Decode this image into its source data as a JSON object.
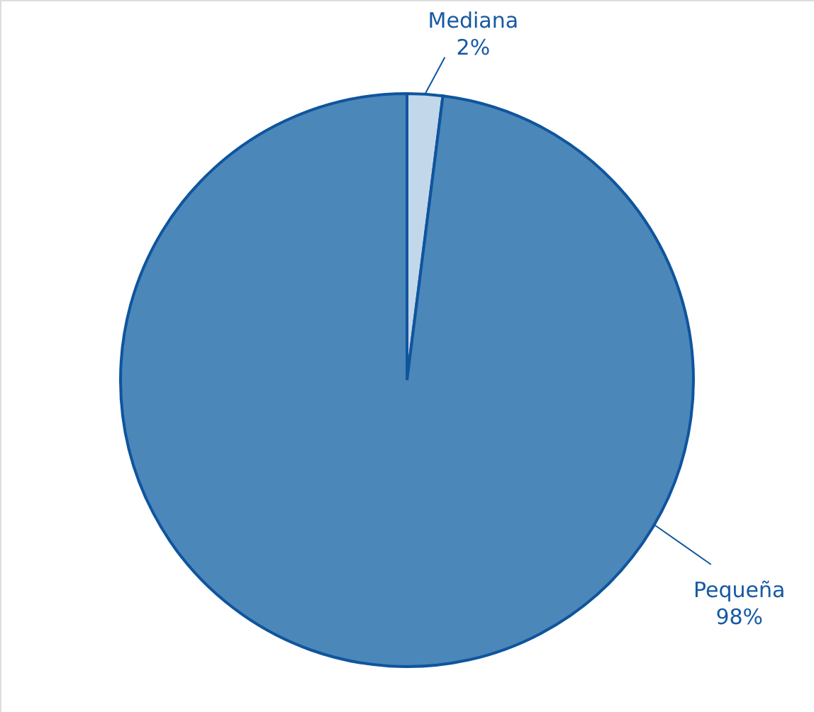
{
  "chart_data": {
    "type": "pie",
    "categories": [
      "Mediana",
      "Pequeña"
    ],
    "values": [
      2,
      98
    ],
    "colors": [
      "#c3d7ea",
      "#4b87b9"
    ],
    "value_labels": [
      "2%",
      "98%"
    ]
  }
}
